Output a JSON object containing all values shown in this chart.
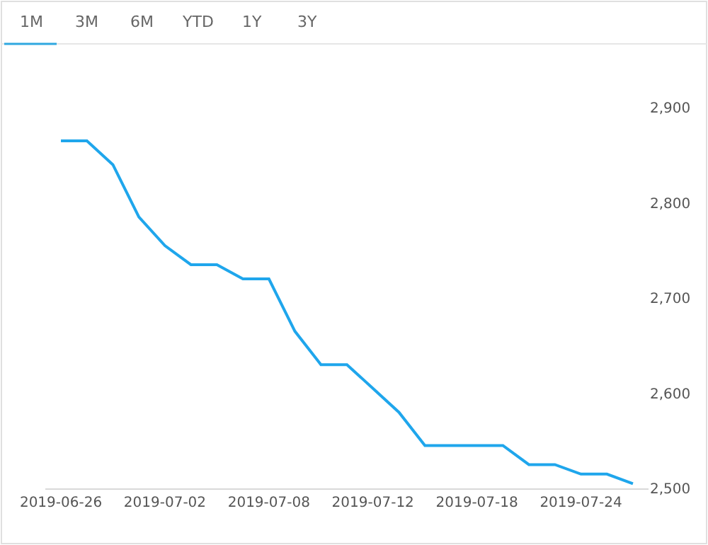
{
  "chart_data": {
    "type": "line",
    "annotations": [
      "1M",
      "3M",
      "6M",
      "YTD",
      "1Y",
      "3Y"
    ],
    "categories": [
      "2019-06-26",
      null,
      null,
      null,
      "2019-07-02",
      null,
      null,
      null,
      "2019-07-08",
      null,
      null,
      null,
      "2019-07-12",
      null,
      null,
      null,
      "2019-07-18",
      null,
      null,
      null,
      "2019-07-24",
      null,
      null
    ],
    "series": [
      {
        "color": "#1fa6ec",
        "values": [
          2865,
          2865,
          2840,
          2785,
          2755,
          2735,
          2735,
          2720,
          2720,
          2665,
          2630,
          2630,
          2605,
          2580,
          2545,
          2545,
          2545,
          2545,
          2525,
          2525,
          2515,
          2515,
          2505
        ]
      }
    ],
    "ylim": [
      2500,
      2900
    ],
    "yticks": [
      {
        "value": 2500,
        "label": "2,500"
      },
      {
        "value": 2600,
        "label": "2,600"
      },
      {
        "value": 2700,
        "label": "2,700"
      },
      {
        "value": 2800,
        "label": "2,800"
      },
      {
        "value": 2900,
        "label": "2,900"
      }
    ],
    "grid": false,
    "marker": "none",
    "line_style": "solid"
  }
}
